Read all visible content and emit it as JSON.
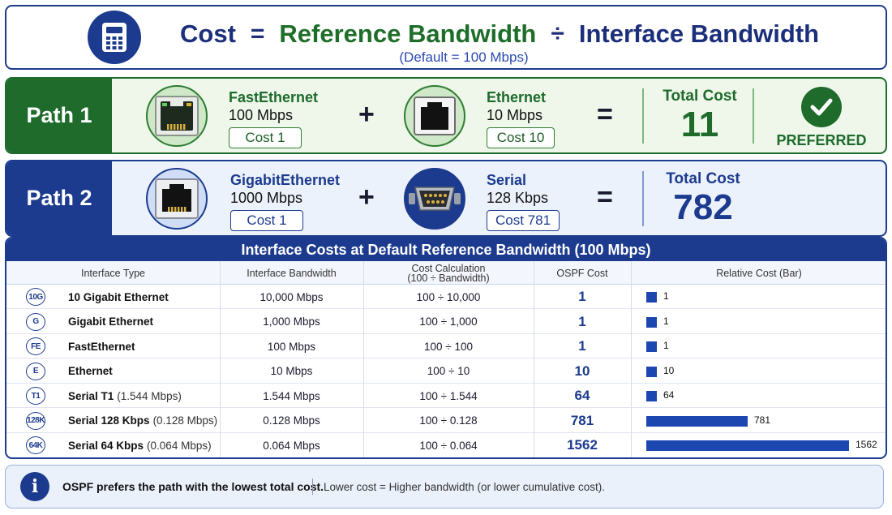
{
  "formula": {
    "cost": "Cost",
    "equals": "=",
    "reference": "Reference Bandwidth",
    "divide": "÷",
    "interface": "Interface Bandwidth",
    "note": "(Default = 100 Mbps)",
    "icon": "calculator-icon"
  },
  "paths": [
    {
      "label": "Path 1",
      "links": [
        {
          "name": "FastEthernet",
          "bandwidth": "100 Mbps",
          "cost": "Cost 1",
          "icon": "ethernet-port-icon"
        },
        {
          "name": "Ethernet",
          "bandwidth": "10 Mbps",
          "cost": "Cost 10",
          "icon": "ethernet-port-icon"
        }
      ],
      "plus": "+",
      "equals": "=",
      "total_label": "Total Cost",
      "total_value": "11",
      "preferred_label": "PREFERRED"
    },
    {
      "label": "Path 2",
      "links": [
        {
          "name": "GigabitEthernet",
          "bandwidth": "1000 Mbps",
          "cost": "Cost 1",
          "icon": "ethernet-port-icon"
        },
        {
          "name": "Serial",
          "bandwidth": "128 Kbps",
          "cost": "Cost 781",
          "icon": "serial-connector-icon"
        }
      ],
      "plus": "+",
      "equals": "=",
      "total_label": "Total Cost",
      "total_value": "782"
    }
  ],
  "table": {
    "title": "Interface Costs at Default Reference Bandwidth (100 Mbps)",
    "headers": {
      "type": "Interface Type",
      "bandwidth": "Interface Bandwidth",
      "calc_line1": "Cost Calculation",
      "calc_line2": "(100 ÷ Bandwidth)",
      "cost": "OSPF Cost",
      "bar": "Relative Cost (Bar)"
    },
    "rows": [
      {
        "badge": "10G",
        "name": "10 Gigabit Ethernet",
        "note": "",
        "bandwidth": "10,000 Mbps",
        "calc": "100 ÷ 10,000",
        "cost": 1
      },
      {
        "badge": "G",
        "name": "Gigabit Ethernet",
        "note": "",
        "bandwidth": "1,000 Mbps",
        "calc": "100 ÷ 1,000",
        "cost": 1
      },
      {
        "badge": "FE",
        "name": "FastEthernet",
        "note": "",
        "bandwidth": "100 Mbps",
        "calc": "100 ÷ 100",
        "cost": 1
      },
      {
        "badge": "E",
        "name": "Ethernet",
        "note": "",
        "bandwidth": "10 Mbps",
        "calc": "100 ÷ 10",
        "cost": 10
      },
      {
        "badge": "T1",
        "name": "Serial T1",
        "note": "(1.544 Mbps)",
        "bandwidth": "1.544 Mbps",
        "calc": "100 ÷ 1.544",
        "cost": 64
      },
      {
        "badge": "128K",
        "name": "Serial 128 Kbps",
        "note": "(0.128 Mbps)",
        "bandwidth": "0.128 Mbps",
        "calc": "100 ÷ 0.128",
        "cost": 781
      },
      {
        "badge": "64K",
        "name": "Serial 64 Kbps",
        "note": "(0.064 Mbps)",
        "bandwidth": "0.064 Mbps",
        "calc": "100 ÷ 0.064",
        "cost": 1562
      }
    ]
  },
  "footer": {
    "icon": "info-icon",
    "info_glyph": "i",
    "main": "OSPF prefers the path with the lowest total cost.",
    "sub": "Lower cost = Higher bandwidth (or lower cumulative cost)."
  },
  "colors": {
    "navy": "#1c3b8f",
    "green": "#1e6b2c",
    "bar": "#1c46b0"
  }
}
